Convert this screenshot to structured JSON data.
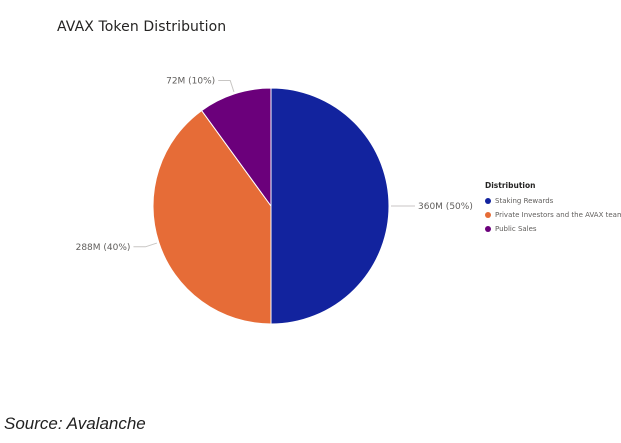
{
  "chart_data": {
    "type": "pie",
    "title": "AVAX Token Distribution",
    "legend_title": "Distribution",
    "legend_position": "right",
    "slices": [
      {
        "name": "Staking Rewards",
        "value": 360,
        "label": "360M (50%)",
        "color": "#12239e"
      },
      {
        "name": "Private Investors and the AVAX team",
        "value": 288,
        "label": "288M (40%)",
        "color": "#e66c37"
      },
      {
        "name": "Public Sales",
        "value": 72,
        "label": "72M (10%)",
        "color": "#6b007b"
      }
    ]
  },
  "source_text": "Source: Avalanche"
}
